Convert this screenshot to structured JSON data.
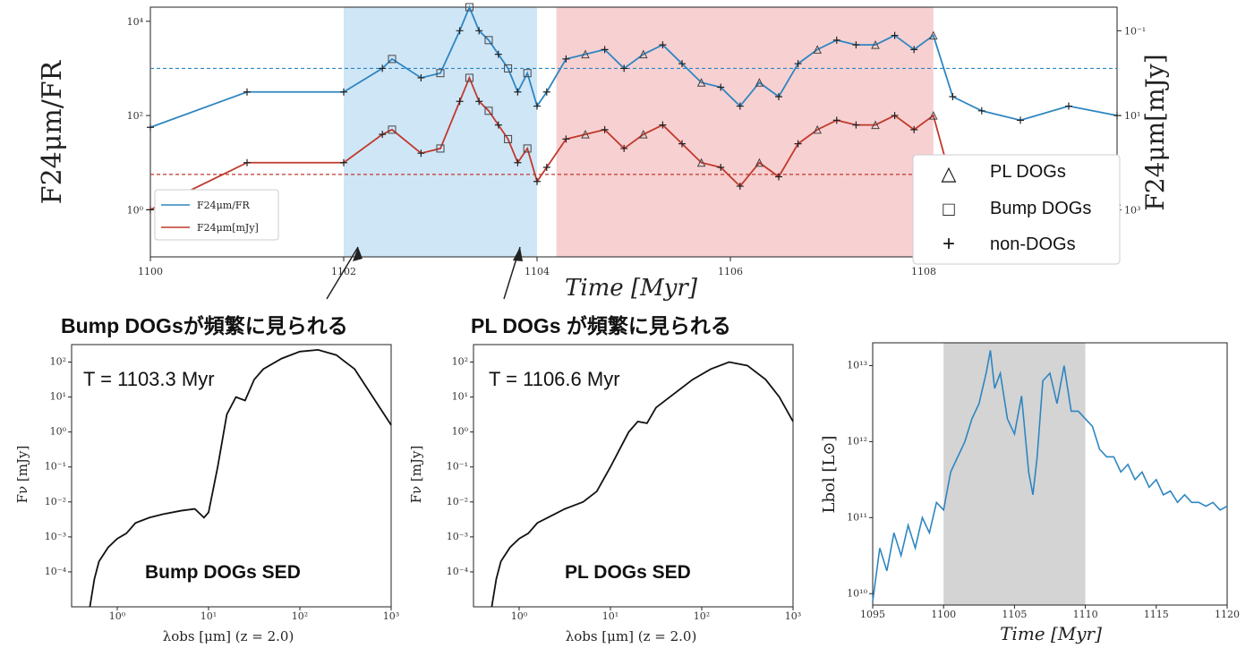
{
  "annotations": {
    "bump_caption": "Bump DOGsが頻繁に見られる",
    "pl_caption": "PL DOGs が頻繁に見られる"
  },
  "legend_markers": {
    "pl": "△",
    "bump": "□",
    "non": "+"
  },
  "colors": {
    "ratio_line": "#2e86c1",
    "flux_line": "#c0392b",
    "blue_band": "#cfe6f7",
    "red_band": "#f7d0d2",
    "gray_band": "#d4d4d4"
  },
  "chart_data": [
    {
      "id": "main_timeseries",
      "type": "line",
      "xlabel": "Time [Myr]",
      "ylabel_left": "F24μm/FR",
      "ylabel_right": "F24μm[mJy]",
      "xlim": [
        1100,
        1110
      ],
      "ylim_left_log10": [
        -1,
        4.3
      ],
      "x_ticks": [
        "1100",
        "1102",
        "1104",
        "1106",
        "1108"
      ],
      "x_tick_values": [
        1100,
        1102,
        1104,
        1106,
        1108
      ],
      "y_ticks_left": [
        "10⁰",
        "10²",
        "10⁴"
      ],
      "y_ticks_left_log10": [
        0,
        2,
        4
      ],
      "y_ticks_right": [
        "10⁻¹",
        "10¹",
        "10³"
      ],
      "shaded_regions": [
        {
          "from": 1102.0,
          "to": 1104.0,
          "color": "blue"
        },
        {
          "from": 1104.2,
          "to": 1108.1,
          "color": "red"
        }
      ],
      "hlines_log10": [
        3.0,
        0.75
      ],
      "inner_legend": [
        "F24μm/FR",
        "F24μm[mJy]"
      ],
      "outer_legend": [
        "PL DOGs",
        "Bump DOGs",
        "non-DOGs"
      ],
      "series": [
        {
          "name": "F24μm/FR",
          "x": [
            1100,
            1101,
            1102,
            1102.4,
            1102.5,
            1102.8,
            1103.0,
            1103.2,
            1103.3,
            1103.4,
            1103.5,
            1103.6,
            1103.7,
            1103.8,
            1103.9,
            1104.0,
            1104.1,
            1104.3,
            1104.5,
            1104.7,
            1104.9,
            1105.1,
            1105.3,
            1105.5,
            1105.7,
            1105.9,
            1106.1,
            1106.3,
            1106.5,
            1106.7,
            1106.9,
            1107.1,
            1107.3,
            1107.5,
            1107.7,
            1107.9,
            1108.1,
            1108.3,
            1108.6,
            1109.0,
            1109.5,
            1110.0
          ],
          "y_log10": [
            1.75,
            2.5,
            2.5,
            3.0,
            3.2,
            2.8,
            2.9,
            3.8,
            4.3,
            3.8,
            3.6,
            3.3,
            3.0,
            2.5,
            2.9,
            2.2,
            2.5,
            3.2,
            3.3,
            3.4,
            3.0,
            3.3,
            3.5,
            3.1,
            2.7,
            2.6,
            2.2,
            2.7,
            2.4,
            3.1,
            3.4,
            3.6,
            3.5,
            3.5,
            3.7,
            3.4,
            3.7,
            2.4,
            2.1,
            1.9,
            2.2,
            2.0
          ]
        },
        {
          "name": "F24μm[mJy]",
          "x": [
            1100,
            1101,
            1102,
            1102.4,
            1102.5,
            1102.8,
            1103.0,
            1103.2,
            1103.3,
            1103.4,
            1103.5,
            1103.6,
            1103.7,
            1103.8,
            1103.9,
            1104.0,
            1104.1,
            1104.3,
            1104.5,
            1104.7,
            1104.9,
            1105.1,
            1105.3,
            1105.5,
            1105.7,
            1105.9,
            1106.1,
            1106.3,
            1106.5,
            1106.7,
            1106.9,
            1107.1,
            1107.3,
            1107.5,
            1107.7,
            1107.9,
            1108.1,
            1108.3,
            1108.6,
            1109.0,
            1109.5,
            1110.0
          ],
          "y_log10": [
            0.0,
            1.0,
            1.0,
            1.6,
            1.7,
            1.2,
            1.3,
            2.3,
            2.8,
            2.3,
            2.1,
            1.8,
            1.5,
            1.0,
            1.3,
            0.6,
            0.9,
            1.5,
            1.6,
            1.7,
            1.3,
            1.6,
            1.8,
            1.4,
            1.0,
            0.9,
            0.5,
            1.0,
            0.7,
            1.4,
            1.7,
            1.9,
            1.8,
            1.8,
            2.0,
            1.7,
            2.0,
            0.5,
            0.2,
            0.0,
            0.3,
            0.1
          ]
        }
      ]
    },
    {
      "id": "sed_bump",
      "type": "line",
      "annotation": "T = 1103.3 Myr",
      "inner_label": "Bump DOGs SED",
      "xlabel": "λobs [μm] (z = 2.0)",
      "ylabel": "Fν [mJy]",
      "x_ticks": [
        "10⁰",
        "10¹",
        "10²",
        "10³"
      ],
      "y_ticks": [
        "10⁻⁴",
        "10⁻³",
        "10⁻²",
        "10⁻¹",
        "10⁰",
        "10¹",
        "10²"
      ],
      "xlim_log10": [
        -0.5,
        3.0
      ],
      "ylim_log10": [
        -5.0,
        2.5
      ],
      "series": [
        {
          "x_log10": [
            -0.3,
            -0.25,
            -0.2,
            -0.1,
            0.0,
            0.1,
            0.2,
            0.35,
            0.5,
            0.7,
            0.85,
            0.95,
            1.0,
            1.1,
            1.2,
            1.3,
            1.4,
            1.5,
            1.6,
            1.8,
            2.0,
            2.2,
            2.4,
            2.6,
            2.8,
            3.0
          ],
          "y_log10": [
            -5.0,
            -4.2,
            -3.7,
            -3.3,
            -3.05,
            -2.9,
            -2.6,
            -2.45,
            -2.35,
            -2.25,
            -2.2,
            -2.45,
            -2.3,
            -1.0,
            0.5,
            1.0,
            0.9,
            1.5,
            1.8,
            2.1,
            2.3,
            2.35,
            2.2,
            1.8,
            1.0,
            0.2
          ]
        }
      ]
    },
    {
      "id": "sed_pl",
      "type": "line",
      "annotation": "T = 1106.6 Myr",
      "inner_label": "PL DOGs SED",
      "xlabel": "λobs [μm] (z = 2.0)",
      "ylabel": "Fν [mJy]",
      "x_ticks": [
        "10⁰",
        "10¹",
        "10²",
        "10³"
      ],
      "y_ticks": [
        "10⁻⁴",
        "10⁻³",
        "10⁻²",
        "10⁻¹",
        "10⁰",
        "10¹",
        "10²"
      ],
      "xlim_log10": [
        -0.5,
        3.0
      ],
      "ylim_log10": [
        -5.0,
        2.5
      ],
      "series": [
        {
          "x_log10": [
            -0.3,
            -0.25,
            -0.2,
            -0.1,
            0.0,
            0.1,
            0.2,
            0.35,
            0.5,
            0.7,
            0.85,
            1.0,
            1.1,
            1.2,
            1.3,
            1.4,
            1.5,
            1.7,
            1.9,
            2.1,
            2.3,
            2.5,
            2.7,
            2.85,
            3.0
          ],
          "y_log10": [
            -5.0,
            -4.2,
            -3.7,
            -3.3,
            -3.05,
            -2.9,
            -2.6,
            -2.4,
            -2.2,
            -2.0,
            -1.7,
            -1.0,
            -0.5,
            0.0,
            0.3,
            0.25,
            0.7,
            1.1,
            1.5,
            1.8,
            2.0,
            1.9,
            1.5,
            1.0,
            0.3
          ]
        }
      ]
    },
    {
      "id": "lbol",
      "type": "line",
      "xlabel": "Time [Myr]",
      "ylabel": "Lbol [L⊙]",
      "x_ticks": [
        "1095",
        "1100",
        "1105",
        "1110",
        "1115",
        "1120"
      ],
      "x_tick_values": [
        1095,
        1100,
        1105,
        1110,
        1115,
        1120
      ],
      "y_ticks": [
        "10¹⁰",
        "10¹¹",
        "10¹²",
        "10¹³"
      ],
      "y_ticks_log10": [
        10,
        11,
        12,
        13
      ],
      "xlim": [
        1095,
        1120
      ],
      "ylim_log10": [
        9.85,
        13.3
      ],
      "shaded_regions": [
        {
          "from": 1100,
          "to": 1110,
          "color": "gray"
        }
      ],
      "series": [
        {
          "x": [
            1095,
            1095.5,
            1096,
            1096.5,
            1097,
            1097.5,
            1098,
            1098.5,
            1099,
            1099.5,
            1100,
            1100.5,
            1101,
            1101.5,
            1102,
            1102.5,
            1103,
            1103.3,
            1103.6,
            1104,
            1104.5,
            1105,
            1105.5,
            1106,
            1106.3,
            1106.6,
            1107,
            1107.5,
            1108,
            1108.5,
            1109,
            1109.5,
            1110,
            1110.5,
            1111,
            1111.5,
            1112,
            1112.5,
            1113,
            1113.5,
            1114,
            1114.5,
            1115,
            1115.5,
            1116,
            1116.5,
            1117,
            1117.5,
            1118,
            1118.5,
            1119,
            1119.5,
            1120
          ],
          "y_log10": [
            9.9,
            10.6,
            10.3,
            10.8,
            10.5,
            10.9,
            10.6,
            11.0,
            10.8,
            11.2,
            11.1,
            11.6,
            11.8,
            12.0,
            12.3,
            12.5,
            12.9,
            13.2,
            12.7,
            12.9,
            12.3,
            12.1,
            12.6,
            11.6,
            11.3,
            11.8,
            12.8,
            12.9,
            12.5,
            13.0,
            12.4,
            12.4,
            12.3,
            12.2,
            11.9,
            11.8,
            11.8,
            11.6,
            11.7,
            11.5,
            11.6,
            11.4,
            11.5,
            11.3,
            11.35,
            11.2,
            11.3,
            11.2,
            11.2,
            11.15,
            11.2,
            11.1,
            11.15
          ]
        }
      ]
    }
  ]
}
